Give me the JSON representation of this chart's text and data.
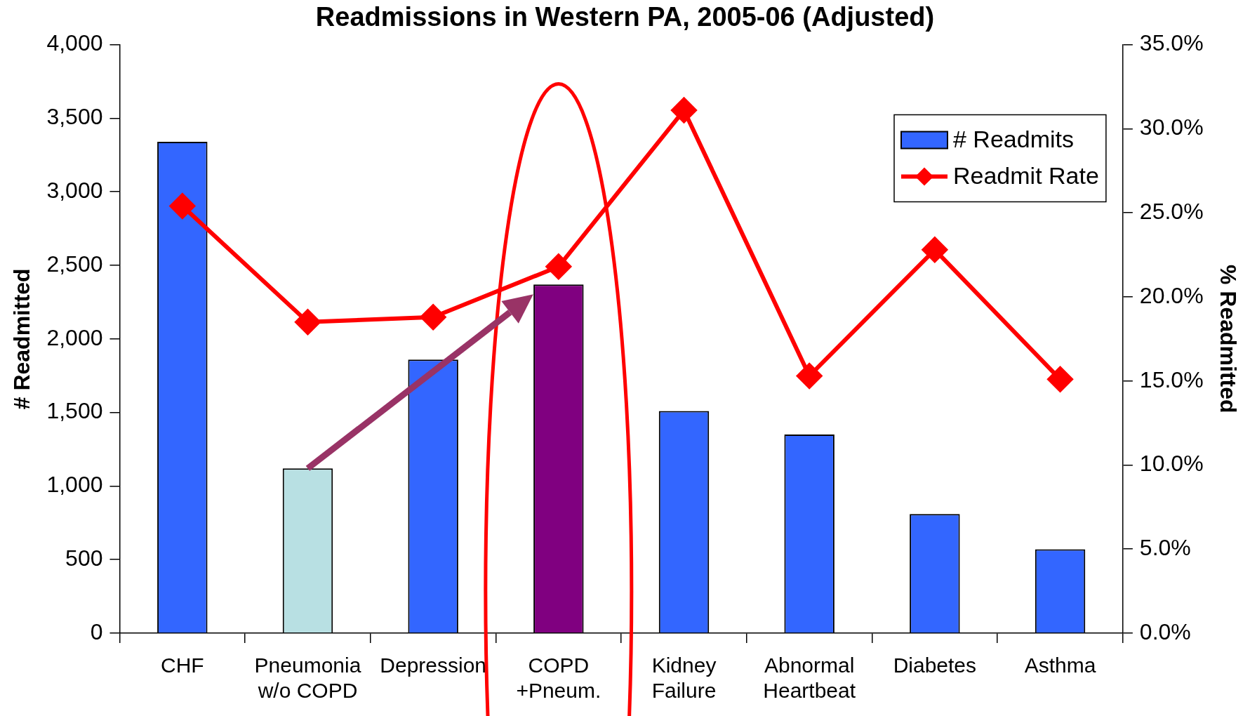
{
  "chart_data": {
    "type": "bar",
    "title": "Readmissions in Western PA, 2005-06 (Adjusted)",
    "ylabel": "# Readmitted",
    "y2label": "% Readmitted",
    "categories": [
      "CHF",
      "Pneumonia w/o COPD",
      "Depression",
      "COPD +Pneum.",
      "Kidney Failure",
      "Abnormal Heartbeat",
      "Diabetes",
      "Asthma"
    ],
    "series": [
      {
        "name": "# Readmits",
        "type": "bar",
        "color": "#3366ff",
        "colors": [
          "#3366ff",
          "#b8e0e3",
          "#3366ff",
          "#800080",
          "#3366ff",
          "#3366ff",
          "#3366ff",
          "#3366ff"
        ],
        "values": [
          3340,
          1120,
          1860,
          2370,
          1510,
          1350,
          810,
          570
        ]
      },
      {
        "name": "Readmit Rate",
        "type": "line",
        "axis": "y2",
        "color": "#ff0000",
        "marker": "diamond",
        "values": [
          25.4,
          18.5,
          18.8,
          21.8,
          31.1,
          15.3,
          22.8,
          15.1
        ]
      }
    ],
    "ylim": [
      0,
      4000
    ],
    "yticks": [
      0,
      500,
      {
        "value": 1000,
        "label": "1,000"
      },
      {
        "value": 1500,
        "label": "1,500"
      },
      {
        "value": 2000,
        "label": "2,000"
      },
      {
        "value": 2500,
        "label": "2,500"
      },
      {
        "value": 3000,
        "label": "3,000"
      },
      {
        "value": 3500,
        "label": "3,500"
      },
      {
        "value": 4000,
        "label": "4,000"
      }
    ],
    "y2lim": [
      0,
      35
    ],
    "y2ticks": [
      {
        "value": 0,
        "label": "0.0%"
      },
      {
        "value": 5,
        "label": "5.0%"
      },
      {
        "value": 10,
        "label": "10.0%"
      },
      {
        "value": 15,
        "label": "15.0%"
      },
      {
        "value": 20,
        "label": "20.0%"
      },
      {
        "value": 25,
        "label": "25.0%"
      },
      {
        "value": 30,
        "label": "30.0%"
      },
      {
        "value": 35,
        "label": "35.0%"
      }
    ],
    "grid": false,
    "legend": "top right"
  }
}
